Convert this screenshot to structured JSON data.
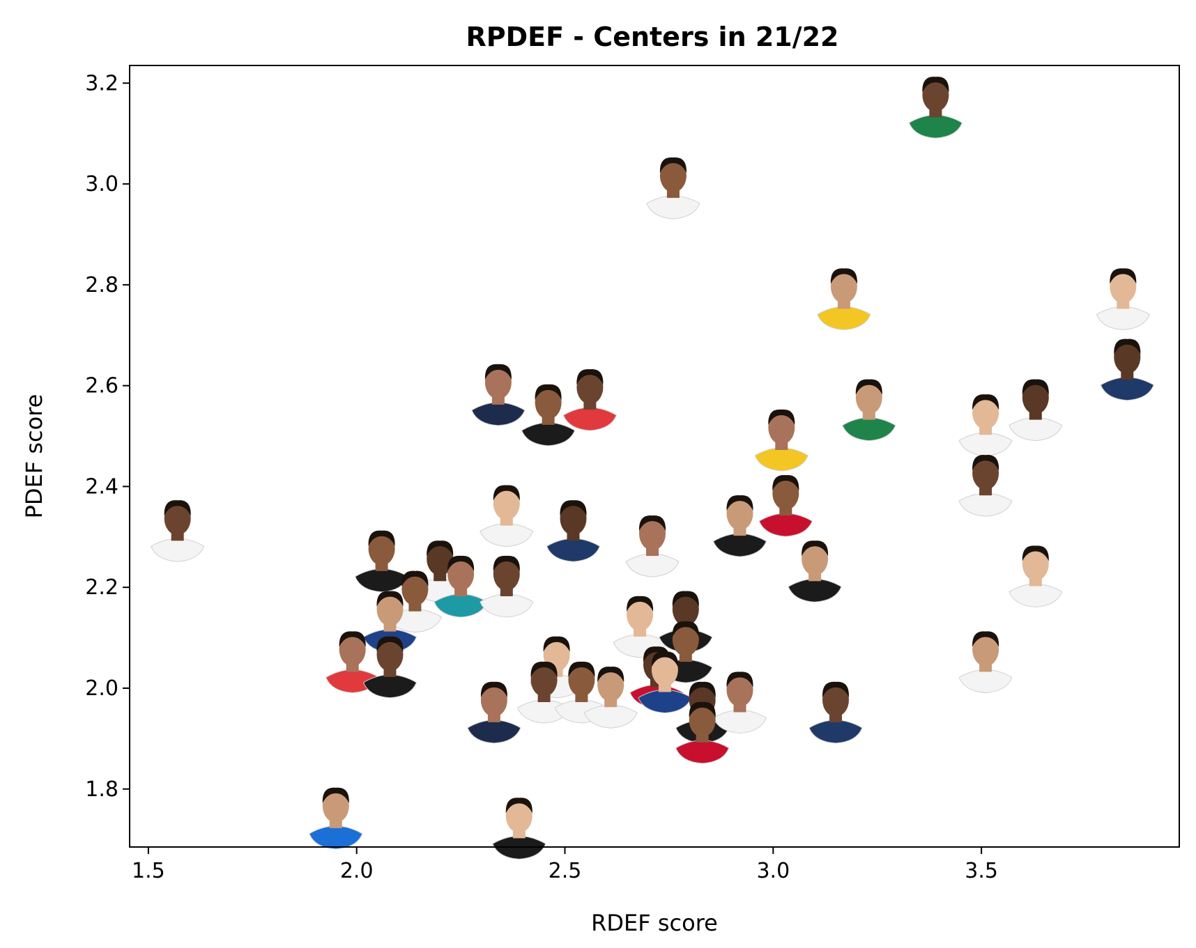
{
  "chart_data": {
    "type": "scatter",
    "title": "RPDEF - Centers in 21/22",
    "xlabel": "RDEF score",
    "ylabel": "PDEF score",
    "xlim": [
      1.455,
      3.975
    ],
    "ylim": [
      1.685,
      3.235
    ],
    "xticks": [
      "1.5",
      "2.0",
      "2.5",
      "3.0",
      "3.5"
    ],
    "yticks": [
      "1.8",
      "2.0",
      "2.2",
      "2.4",
      "2.6",
      "2.8",
      "3.0",
      "3.2"
    ],
    "grid": false,
    "marker": "player-headshot",
    "points": [
      {
        "x": 3.39,
        "y": 3.16,
        "jersey": "#1e8449"
      },
      {
        "x": 2.76,
        "y": 3.0,
        "jersey": "#f4f4f4"
      },
      {
        "x": 3.17,
        "y": 2.78,
        "jersey": "#f3c623"
      },
      {
        "x": 3.84,
        "y": 2.78,
        "jersey": "#f4f4f4"
      },
      {
        "x": 3.85,
        "y": 2.64,
        "jersey": "#1f3a68"
      },
      {
        "x": 2.34,
        "y": 2.59,
        "jersey": "#1d2c4d"
      },
      {
        "x": 2.56,
        "y": 2.58,
        "jersey": "#e03a3e"
      },
      {
        "x": 2.46,
        "y": 2.55,
        "jersey": "#1b1b1b"
      },
      {
        "x": 3.23,
        "y": 2.56,
        "jersey": "#1e8449"
      },
      {
        "x": 3.51,
        "y": 2.53,
        "jersey": "#f4f4f4"
      },
      {
        "x": 3.63,
        "y": 2.56,
        "jersey": "#f4f4f4"
      },
      {
        "x": 3.02,
        "y": 2.5,
        "jersey": "#f3c623"
      },
      {
        "x": 3.51,
        "y": 2.41,
        "jersey": "#f4f4f4"
      },
      {
        "x": 3.03,
        "y": 2.37,
        "jersey": "#c8102e"
      },
      {
        "x": 2.92,
        "y": 2.33,
        "jersey": "#1b1b1b"
      },
      {
        "x": 2.36,
        "y": 2.35,
        "jersey": "#f4f4f4"
      },
      {
        "x": 2.52,
        "y": 2.32,
        "jersey": "#1f3a68"
      },
      {
        "x": 2.71,
        "y": 2.29,
        "jersey": "#f4f4f4"
      },
      {
        "x": 1.57,
        "y": 2.32,
        "jersey": "#f4f4f4"
      },
      {
        "x": 2.06,
        "y": 2.26,
        "jersey": "#1b1b1b"
      },
      {
        "x": 3.1,
        "y": 2.24,
        "jersey": "#1b1b1b"
      },
      {
        "x": 3.63,
        "y": 2.23,
        "jersey": "#f4f4f4"
      },
      {
        "x": 2.2,
        "y": 2.24,
        "jersey": "#f4f4f4"
      },
      {
        "x": 2.25,
        "y": 2.21,
        "jersey": "#1e9aa5"
      },
      {
        "x": 2.36,
        "y": 2.21,
        "jersey": "#f4f4f4"
      },
      {
        "x": 2.14,
        "y": 2.18,
        "jersey": "#f4f4f4"
      },
      {
        "x": 2.08,
        "y": 2.14,
        "jersey": "#1d428a"
      },
      {
        "x": 2.68,
        "y": 2.13,
        "jersey": "#f4f4f4"
      },
      {
        "x": 2.79,
        "y": 2.14,
        "jersey": "#1b1b1b"
      },
      {
        "x": 1.99,
        "y": 2.06,
        "jersey": "#e03a3e"
      },
      {
        "x": 2.08,
        "y": 2.05,
        "jersey": "#1b1b1b"
      },
      {
        "x": 2.79,
        "y": 2.08,
        "jersey": "#1b1b1b"
      },
      {
        "x": 3.51,
        "y": 2.06,
        "jersey": "#f4f4f4"
      },
      {
        "x": 2.48,
        "y": 2.05,
        "jersey": "#f4f4f4"
      },
      {
        "x": 2.72,
        "y": 2.03,
        "jersey": "#c8102e"
      },
      {
        "x": 2.33,
        "y": 1.96,
        "jersey": "#1d2c4d"
      },
      {
        "x": 2.45,
        "y": 2.0,
        "jersey": "#f4f4f4"
      },
      {
        "x": 2.54,
        "y": 2.0,
        "jersey": "#f4f4f4"
      },
      {
        "x": 2.61,
        "y": 1.99,
        "jersey": "#f4f4f4"
      },
      {
        "x": 2.74,
        "y": 2.02,
        "jersey": "#1d428a"
      },
      {
        "x": 2.83,
        "y": 1.96,
        "jersey": "#1b1b1b"
      },
      {
        "x": 2.92,
        "y": 1.98,
        "jersey": "#f4f4f4"
      },
      {
        "x": 3.15,
        "y": 1.96,
        "jersey": "#1f3a68"
      },
      {
        "x": 2.83,
        "y": 1.92,
        "jersey": "#c8102e"
      },
      {
        "x": 1.95,
        "y": 1.75,
        "jersey": "#1d6fd8"
      },
      {
        "x": 2.39,
        "y": 1.73,
        "jersey": "#1b1b1b"
      }
    ]
  }
}
